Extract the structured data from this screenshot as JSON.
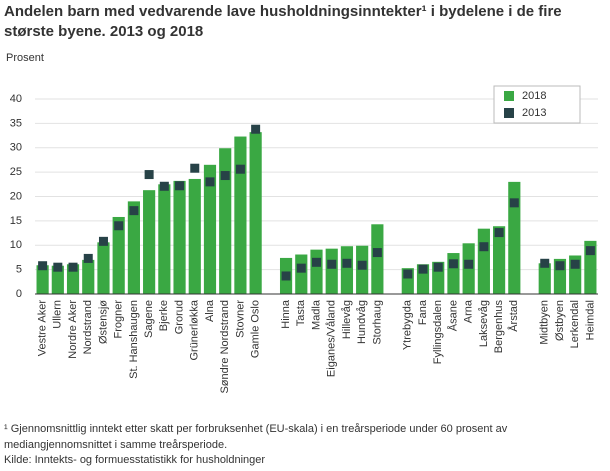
{
  "chart_data": {
    "type": "bar",
    "title": "Andelen barn med vedvarende lave husholdningsinntekter¹ i bydelene i de fire største byene. 2013 og 2018",
    "y_label": "Prosent",
    "categories": [
      "Vestre Aker",
      "Ullern",
      "Nordre Aker",
      "Nordstrand",
      "Østensjø",
      "Frogner",
      "St. Hanshaugen",
      "Sagene",
      "Bjerke",
      "Grorud",
      "Grünerløkka",
      "Alna",
      "Søndre Nordstrand",
      "Stovner",
      "Gamle Oslo",
      null,
      "Hinna",
      "Tasta",
      "Madla",
      "Eiganes/Våland",
      "Hillevåg",
      "Hundvåg",
      "Storhaug",
      null,
      "Ytrebygda",
      "Fana",
      "Fyllingsdalen",
      "Åsane",
      "Arna",
      "Laksevåg",
      "Bergenhus",
      "Årstad",
      null,
      "Midtbyen",
      "Østbyen",
      "Lerkendal",
      "Heimdal"
    ],
    "series": [
      {
        "name": "2018",
        "color": "#3aa843",
        "mark": "bar",
        "values": [
          5.9,
          5.8,
          6.1,
          7.0,
          10.6,
          15.8,
          19.0,
          21.3,
          22.5,
          23.2,
          23.6,
          26.5,
          29.9,
          32.3,
          33.2,
          null,
          7.4,
          8.1,
          9.1,
          9.3,
          9.8,
          9.9,
          14.3,
          null,
          5.3,
          6.1,
          6.6,
          8.4,
          10.4,
          13.4,
          13.9,
          23.0,
          null,
          6.3,
          7.2,
          7.9,
          10.9
        ]
      },
      {
        "name": "2013",
        "color": "#274247",
        "mark": "square",
        "values": [
          5.8,
          5.5,
          5.5,
          7.3,
          10.8,
          14.0,
          17.1,
          24.5,
          22.1,
          22.2,
          25.8,
          23.0,
          24.3,
          25.6,
          33.8,
          null,
          3.7,
          5.3,
          6.5,
          6.1,
          6.3,
          5.9,
          8.5,
          null,
          4.1,
          5.1,
          5.5,
          6.2,
          6.1,
          9.7,
          12.6,
          18.7,
          null,
          6.3,
          5.8,
          6.1,
          8.9
        ]
      }
    ],
    "ylim": [
      0,
      40
    ],
    "yticks": [
      0,
      5,
      10,
      15,
      20,
      25,
      30,
      35,
      40
    ],
    "grid": true,
    "legend": "top-right",
    "footnote": "¹ Gjennomsnittlig inntekt etter skatt per forbruksenhet (EU-skala) i en treårsperiode under 60 prosent av mediangjennomsnittet i samme treårsperiode.",
    "source": "Kilde: Inntekts- og formuesstatistikk for husholdninger"
  }
}
